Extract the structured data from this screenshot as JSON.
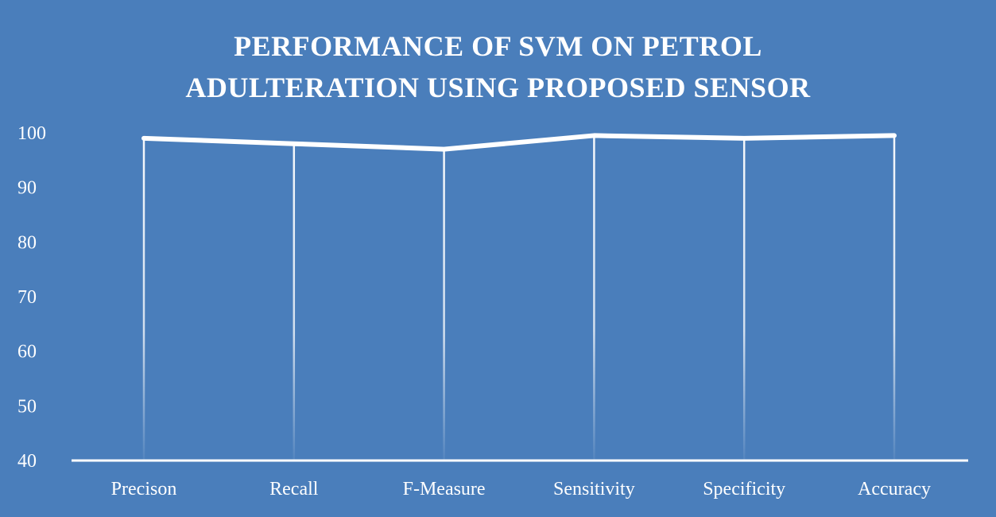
{
  "chart_data": {
    "type": "line",
    "title_lines": [
      "PERFORMANCE OF SVM ON PETROL",
      "ADULTERATION USING PROPOSED SENSOR"
    ],
    "categories": [
      "Precison",
      "Recall",
      "F-Measure",
      "Sensitivity",
      "Specificity",
      "Accuracy"
    ],
    "series": [
      {
        "values": [
          99.0,
          98.0,
          97.0,
          99.5,
          99.0,
          99.5
        ]
      }
    ],
    "yticks": [
      40,
      50,
      60,
      70,
      80,
      90,
      100
    ],
    "ylim": [
      40,
      100
    ],
    "drop_lines": true,
    "grid": false,
    "legend": "none"
  },
  "colors": {
    "background": "#4a7ebb",
    "line": "#ffffff",
    "text": "#ffffff"
  }
}
